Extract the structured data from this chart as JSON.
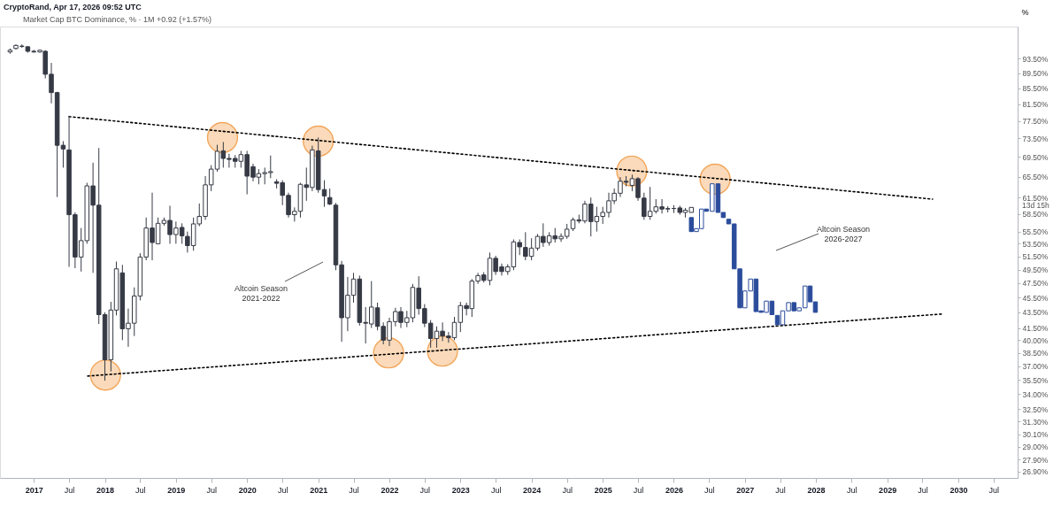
{
  "chart_data": {
    "type": "candlestick",
    "title": "Market Cap BTC Dominance, % · 1M  +0.92 (+1.57%)",
    "ylabel": "%",
    "log": true,
    "xlim": [
      "2016-08-03",
      "2030-10-10"
    ],
    "ylim": [
      26.4,
      103
    ],
    "xticks": [
      "2017",
      {
        "value": "2017-07",
        "label": "Jul"
      },
      "2018",
      {
        "value": "2018-07",
        "label": "Jul"
      },
      "2019",
      {
        "value": "2019-07",
        "label": "Jul"
      },
      "2020",
      {
        "value": "2020-07",
        "label": "Jul"
      },
      "2021",
      {
        "value": "2021-07",
        "label": "Jul"
      },
      "2022",
      {
        "value": "2022-07",
        "label": "Jul"
      },
      "2023",
      {
        "value": "2023-07",
        "label": "Jul"
      },
      "2024",
      {
        "value": "2024-07",
        "label": "Jul"
      },
      "2025",
      {
        "value": "2025-07",
        "label": "Jul"
      },
      "2026",
      {
        "value": "2026-07",
        "label": "Jul"
      },
      "2027",
      {
        "value": "2027-07",
        "label": "Jul"
      },
      "2028",
      {
        "value": "2028-07",
        "label": "Jul"
      },
      "2029",
      {
        "value": "2029-07",
        "label": "Jul"
      },
      "2030",
      {
        "value": "2030-07",
        "label": "Jul"
      }
    ],
    "yticks": [
      {
        "value": 93.5,
        "label": "93.50%"
      },
      {
        "value": 89.5,
        "label": "89.50%"
      },
      {
        "value": 85.5,
        "label": "85.50%"
      },
      {
        "value": 81.5,
        "label": "81.50%"
      },
      {
        "value": 77.5,
        "label": "77.50%"
      },
      {
        "value": 73.5,
        "label": "73.50%"
      },
      {
        "value": 69.5,
        "label": "69.50%"
      },
      {
        "value": 65.5,
        "label": "65.50%"
      },
      {
        "value": 61.5,
        "label": "61.50%"
      },
      {
        "value": 58.5,
        "label": "58.50%"
      },
      {
        "value": 55.5,
        "label": "55.50%"
      },
      {
        "value": 53.5,
        "label": "53.50%"
      },
      {
        "value": 51.5,
        "label": "51.50%"
      },
      {
        "value": 49.5,
        "label": "49.50%"
      },
      {
        "value": 47.5,
        "label": "47.50%"
      },
      {
        "value": 45.5,
        "label": "45.50%"
      },
      {
        "value": 43.5,
        "label": "43.50%"
      },
      {
        "value": 41.5,
        "label": "41.50%"
      },
      {
        "value": 40,
        "label": "40.00%"
      },
      {
        "value": 38.5,
        "label": "38.50%"
      },
      {
        "value": 37,
        "label": "37.00%"
      },
      {
        "value": 35.5,
        "label": "35.50%"
      },
      {
        "value": 34,
        "label": "34.00%"
      },
      {
        "value": 32.5,
        "label": "32.50%"
      },
      {
        "value": 31.3,
        "label": "31.30%"
      },
      {
        "value": 30.1,
        "label": "30.10%"
      },
      {
        "value": 29,
        "label": "29.00%"
      },
      {
        "value": 27.9,
        "label": "27.90%"
      },
      {
        "value": 26.9,
        "label": "26.90%"
      }
    ],
    "annotations": [
      "CryptoRand, Apr 17, 2026 09:52 UTC",
      "Altcoin Season\n2021-2022",
      "Altcoin Season\n2026-2027",
      "13d 15h"
    ],
    "series": [
      {
        "color": "#363a45",
        "x": [
          "2016-09",
          "2016-10",
          "2016-11",
          "2016-12",
          "2017-01",
          "2017-02",
          "2017-03",
          "2017-04",
          "2017-05",
          "2017-06",
          "2017-07",
          "2017-08",
          "2017-09",
          "2017-10",
          "2017-11",
          "2017-12",
          "2018-01",
          "2018-02",
          "2018-03",
          "2018-04",
          "2018-05",
          "2018-06",
          "2018-07",
          "2018-08",
          "2018-09",
          "2018-10",
          "2018-11",
          "2018-12",
          "2019-01",
          "2019-02",
          "2019-03",
          "2019-04",
          "2019-05",
          "2019-06",
          "2019-07",
          "2019-08",
          "2019-09",
          "2019-10",
          "2019-11",
          "2019-12",
          "2020-01",
          "2020-02",
          "2020-03",
          "2020-04",
          "2020-05",
          "2020-06",
          "2020-07",
          "2020-08",
          "2020-09",
          "2020-10",
          "2020-11",
          "2020-12",
          "2021-01",
          "2021-02",
          "2021-03",
          "2021-04",
          "2021-05",
          "2021-06",
          "2021-07",
          "2021-08",
          "2021-09",
          "2021-10",
          "2021-11",
          "2021-12",
          "2022-01",
          "2022-02",
          "2022-03",
          "2022-04",
          "2022-05",
          "2022-06",
          "2022-07",
          "2022-08",
          "2022-09",
          "2022-10",
          "2022-11",
          "2022-12",
          "2023-01",
          "2023-02",
          "2023-03",
          "2023-04",
          "2023-05",
          "2023-06",
          "2023-07",
          "2023-08",
          "2023-09",
          "2023-10",
          "2023-11",
          "2023-12",
          "2024-01",
          "2024-02",
          "2024-03",
          "2024-04",
          "2024-05",
          "2024-06",
          "2024-07",
          "2024-08",
          "2024-09",
          "2024-10",
          "2024-11",
          "2024-12",
          "2025-01",
          "2025-02",
          "2025-03",
          "2025-04",
          "2025-05",
          "2025-06",
          "2025-07",
          "2025-08",
          "2025-09",
          "2025-10",
          "2025-11",
          "2025-12",
          "2026-01",
          "2026-02",
          "2026-03",
          "2026-04"
        ],
        "ohlc": [
          [
            95.4,
            96.4,
            94.9,
            95.9
          ],
          [
            96.4,
            97.6,
            96.1,
            97.3
          ],
          [
            97.1,
            97.6,
            96.6,
            97.0
          ],
          [
            96.9,
            97.1,
            95.2,
            95.6
          ],
          [
            95.6,
            96.0,
            95.2,
            95.4
          ],
          [
            95.4,
            96.1,
            95.2,
            95.9
          ],
          [
            95.6,
            95.9,
            88.1,
            89.2
          ],
          [
            89.2,
            92.3,
            81.7,
            84.4
          ],
          [
            84.4,
            84.6,
            61.6,
            72.0
          ],
          [
            72.0,
            72.9,
            67.3,
            71.2
          ],
          [
            71.0,
            78.7,
            49.9,
            58.4
          ],
          [
            58.4,
            58.8,
            49.7,
            51.4
          ],
          [
            51.4,
            56.1,
            49.2,
            54.0
          ],
          [
            54.0,
            64.3,
            53.5,
            63.7
          ],
          [
            63.7,
            68.3,
            49.0,
            60.1
          ],
          [
            60.1,
            71.4,
            42.0,
            43.2
          ],
          [
            43.2,
            43.5,
            35.4,
            37.7
          ],
          [
            37.7,
            44.9,
            36.4,
            43.8
          ],
          [
            43.8,
            50.7,
            43.1,
            49.6
          ],
          [
            49.0,
            50.2,
            40.0,
            41.4
          ],
          [
            41.4,
            44.0,
            39.2,
            42.1
          ],
          [
            42.1,
            46.9,
            40.5,
            45.7
          ],
          [
            45.7,
            52.0,
            45.1,
            51.4
          ],
          [
            51.4,
            57.9,
            50.9,
            56.1
          ],
          [
            56.1,
            62.4,
            50.9,
            53.7
          ],
          [
            53.5,
            57.9,
            53.4,
            56.9
          ],
          [
            56.9,
            57.9,
            56.5,
            57.4
          ],
          [
            57.4,
            60.0,
            53.5,
            55.0
          ],
          [
            55.0,
            57.2,
            53.5,
            56.1
          ],
          [
            56.2,
            56.9,
            53.5,
            54.8
          ],
          [
            54.7,
            55.5,
            52.1,
            53.2
          ],
          [
            53.2,
            57.9,
            52.4,
            56.8
          ],
          [
            56.8,
            60.4,
            56.4,
            58.1
          ],
          [
            58.1,
            65.6,
            57.5,
            63.9
          ],
          [
            63.9,
            67.8,
            62.7,
            67.0
          ],
          [
            67.0,
            72.1,
            66.5,
            70.7
          ],
          [
            70.8,
            72.7,
            67.3,
            69.2
          ],
          [
            69.2,
            70.2,
            67.3,
            69.0
          ],
          [
            69.2,
            69.9,
            67.3,
            68.6
          ],
          [
            68.6,
            70.8,
            67.3,
            70.0
          ],
          [
            70.0,
            70.8,
            62.1,
            65.6
          ],
          [
            67.5,
            68.1,
            64.6,
            65.4
          ],
          [
            65.4,
            67.0,
            64.0,
            66.1
          ],
          [
            66.1,
            67.3,
            64.0,
            66.3
          ],
          [
            66.3,
            69.8,
            65.2,
            66.5
          ],
          [
            64.5,
            65.0,
            63.2,
            64.2
          ],
          [
            64.3,
            64.8,
            60.1,
            61.9
          ],
          [
            61.9,
            62.4,
            57.9,
            58.4
          ],
          [
            58.4,
            59.7,
            57.2,
            59.0
          ],
          [
            59.0,
            64.3,
            57.9,
            64.0
          ],
          [
            63.9,
            67.3,
            60.9,
            63.4
          ],
          [
            63.4,
            71.9,
            62.7,
            71.0
          ],
          [
            70.8,
            73.7,
            62.4,
            63.0
          ],
          [
            63.0,
            64.8,
            59.8,
            61.8
          ],
          [
            61.5,
            63.2,
            60.1,
            60.3
          ],
          [
            60.1,
            60.5,
            49.4,
            50.2
          ],
          [
            50.2,
            50.8,
            39.8,
            42.8
          ],
          [
            42.8,
            48.4,
            41.1,
            45.8
          ],
          [
            45.8,
            49.0,
            44.8,
            48.1
          ],
          [
            48.1,
            48.6,
            41.8,
            42.2
          ],
          [
            42.2,
            44.2,
            39.6,
            42.1
          ],
          [
            42.0,
            47.8,
            41.5,
            44.2
          ],
          [
            44.1,
            44.8,
            41.2,
            41.7
          ],
          [
            41.7,
            42.2,
            39.5,
            40.0
          ],
          [
            40.0,
            42.8,
            39.3,
            42.3
          ],
          [
            42.3,
            44.1,
            41.7,
            43.6
          ],
          [
            43.6,
            44.2,
            41.5,
            42.2
          ],
          [
            42.2,
            43.7,
            41.6,
            42.8
          ],
          [
            42.8,
            47.4,
            42.2,
            46.9
          ],
          [
            46.8,
            48.5,
            43.2,
            44.0
          ],
          [
            44.0,
            44.6,
            41.6,
            42.1
          ],
          [
            42.1,
            42.5,
            39.1,
            40.2
          ],
          [
            40.2,
            41.7,
            39.1,
            41.1
          ],
          [
            41.1,
            42.2,
            39.9,
            40.5
          ],
          [
            40.5,
            41.0,
            39.7,
            40.3
          ],
          [
            40.3,
            42.9,
            40.0,
            42.2
          ],
          [
            42.2,
            44.9,
            41.0,
            44.4
          ],
          [
            44.4,
            44.8,
            43.1,
            44.0
          ],
          [
            44.0,
            48.1,
            42.9,
            47.8
          ],
          [
            47.8,
            49.0,
            47.4,
            48.6
          ],
          [
            48.7,
            49.1,
            47.6,
            47.9
          ],
          [
            47.9,
            52.1,
            47.2,
            51.2
          ],
          [
            51.2,
            51.6,
            48.7,
            49.2
          ],
          [
            49.9,
            50.4,
            48.6,
            49.2
          ],
          [
            49.2,
            50.3,
            48.7,
            49.9
          ],
          [
            49.9,
            54.2,
            49.4,
            53.8
          ],
          [
            53.7,
            54.2,
            51.7,
            53.0
          ],
          [
            52.9,
            55.4,
            50.9,
            51.5
          ],
          [
            51.5,
            54.4,
            50.9,
            52.8
          ],
          [
            52.8,
            55.1,
            52.4,
            54.7
          ],
          [
            54.7,
            56.9,
            53.0,
            53.7
          ],
          [
            53.7,
            55.4,
            53.2,
            54.8
          ],
          [
            54.8,
            56.1,
            53.7,
            54.3
          ],
          [
            54.3,
            55.2,
            53.8,
            54.7
          ],
          [
            54.7,
            56.8,
            54.3,
            55.9
          ],
          [
            56.0,
            57.9,
            55.6,
            57.5
          ],
          [
            57.5,
            58.4,
            56.9,
            57.3
          ],
          [
            57.3,
            60.9,
            56.9,
            60.3
          ],
          [
            60.3,
            61.5,
            54.7,
            57.2
          ],
          [
            57.2,
            59.8,
            55.5,
            58.1
          ],
          [
            58.1,
            59.8,
            56.8,
            58.8
          ],
          [
            58.8,
            62.4,
            57.9,
            60.9
          ],
          [
            60.9,
            63.2,
            60.3,
            62.3
          ],
          [
            62.3,
            65.4,
            61.6,
            64.6
          ],
          [
            64.6,
            65.6,
            63.6,
            64.4
          ],
          [
            63.8,
            65.9,
            62.7,
            65.1
          ],
          [
            65.1,
            65.4,
            60.9,
            61.5
          ],
          [
            61.4,
            62.4,
            57.5,
            58.1
          ],
          [
            58.1,
            63.5,
            57.5,
            59.0
          ],
          [
            59.0,
            61.2,
            58.6,
            59.8
          ],
          [
            59.8,
            61.2,
            58.6,
            59.4
          ],
          [
            59.4,
            59.9,
            58.8,
            59.5
          ],
          [
            59.5,
            60.1,
            58.7,
            59.5
          ],
          [
            59.6,
            60.0,
            58.4,
            58.8
          ],
          [
            58.8,
            59.6,
            57.9,
            59.2
          ],
          [
            58.8,
            59.7,
            58.8,
            59.7
          ]
        ]
      },
      {
        "color": "#2b4c9b",
        "x": [
          "2026-04-01",
          "2026-04-27",
          "2026-05-23",
          "2026-06-17",
          "2026-07-17",
          "2026-08-16",
          "2026-09-12",
          "2026-10-10",
          "2026-11-07",
          "2026-12-06",
          "2027-01-01",
          "2027-01-30",
          "2027-02-27",
          "2027-03-25",
          "2027-04-21",
          "2027-05-20",
          "2027-06-17",
          "2027-07-14",
          "2027-08-13",
          "2027-09-10",
          "2027-10-07",
          "2027-11-06",
          "2027-12-02",
          "2027-12-29"
        ],
        "ohlc": [
          [
            57.9,
            57.9,
            55.5,
            55.5
          ],
          [
            55.5,
            56.0,
            55.5,
            56.0
          ],
          [
            56.0,
            59.4,
            56.0,
            59.4
          ],
          [
            59.4,
            59.4,
            59.0,
            59.0
          ],
          [
            59.0,
            64.1,
            59.0,
            64.1
          ],
          [
            64.1,
            64.1,
            58.8,
            58.8
          ],
          [
            58.8,
            58.8,
            57.9,
            57.9
          ],
          [
            57.6,
            57.6,
            56.8,
            56.8
          ],
          [
            56.8,
            56.8,
            49.6,
            49.6
          ],
          [
            49.6,
            49.6,
            44.1,
            44.1
          ],
          [
            44.1,
            46.4,
            44.1,
            46.4
          ],
          [
            46.4,
            48.1,
            46.4,
            48.1
          ],
          [
            48.1,
            48.1,
            43.6,
            43.6
          ],
          [
            43.7,
            43.7,
            43.5,
            43.5
          ],
          [
            43.5,
            45.0,
            43.5,
            45.0
          ],
          [
            45.0,
            45.0,
            43.2,
            43.2
          ],
          [
            43.1,
            43.1,
            41.9,
            41.9
          ],
          [
            41.9,
            43.7,
            41.9,
            43.7
          ],
          [
            43.7,
            44.8,
            43.7,
            44.8
          ],
          [
            44.8,
            44.8,
            43.7,
            43.7
          ],
          [
            43.7,
            44.1,
            43.7,
            44.1
          ],
          [
            44.1,
            47.1,
            44.1,
            47.1
          ],
          [
            47.1,
            47.1,
            44.9,
            44.9
          ],
          [
            44.9,
            44.9,
            43.5,
            43.5
          ]
        ]
      },
      {
        "type": "line",
        "color": "#000000",
        "line_style": "dotted",
        "x": [
          "2017-07-01",
          "2029-08-22"
        ],
        "values": [
          78.5,
          61.2
        ]
      },
      {
        "type": "line",
        "color": "#000000",
        "line_style": "dotted",
        "x": [
          "2017-10-05",
          "2029-10-18"
        ],
        "values": [
          35.9,
          43.3
        ]
      },
      {
        "type": "scatter",
        "color": "#f2a65a",
        "marker": "circle",
        "x": [
          "2018-01-04",
          "2019-08-28",
          "2021-01-01",
          "2021-12-28",
          "2022-10-01",
          "2025-05-30",
          "2026-08-01"
        ],
        "values": [
          36.0,
          73.7,
          72.9,
          38.5,
          38.7,
          66.6,
          65.0
        ]
      }
    ]
  }
}
